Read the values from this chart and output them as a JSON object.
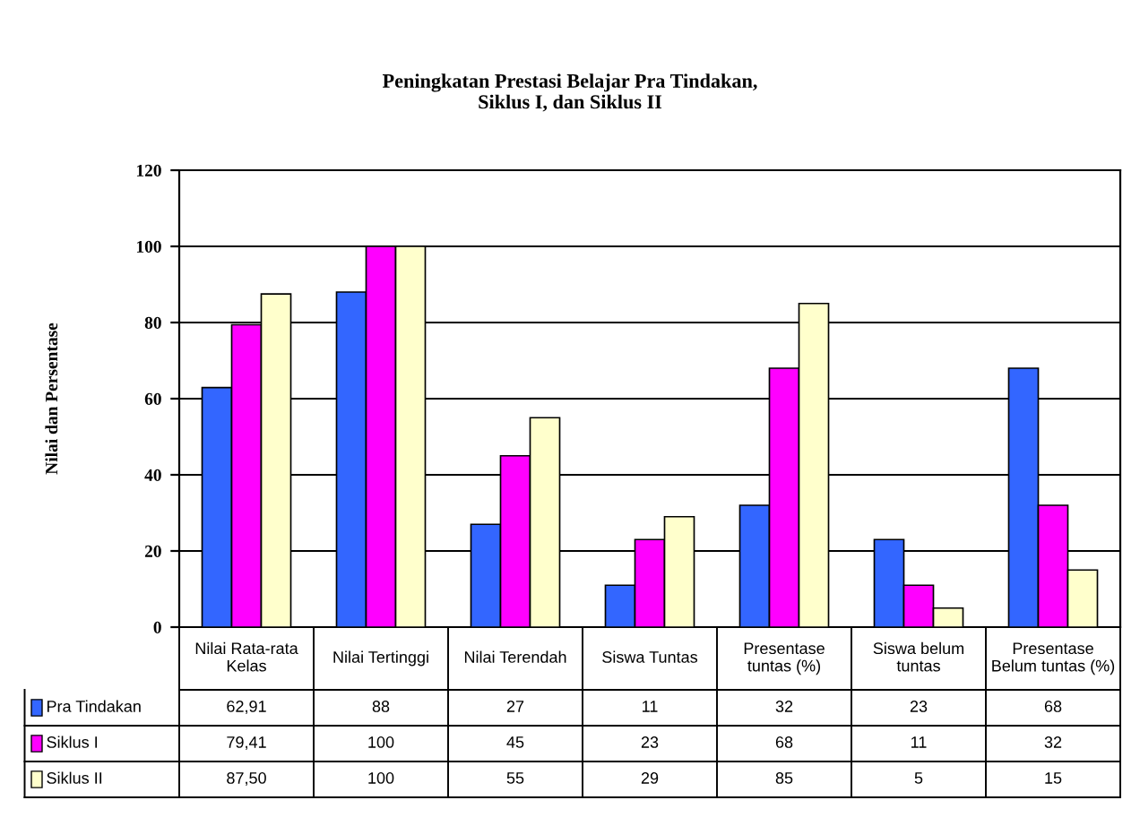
{
  "chart_data": {
    "type": "bar",
    "title": "Peningkatan Prestasi Belajar Pra Tindakan,\nSiklus I, dan Siklus II",
    "ylabel": "Nilai dan Persentase",
    "categories": [
      "Nilai Rata-rata\nKelas",
      "Nilai Tertinggi",
      "Nilai Terendah",
      "Siswa Tuntas",
      "Presentase\ntuntas (%)",
      "Siswa belum\ntuntas",
      "Presentase\nBelum tuntas (%)"
    ],
    "series": [
      {
        "name": "Pra Tindakan",
        "color": "#3366ff",
        "values": [
          62.91,
          88,
          27,
          11,
          32,
          23,
          68
        ],
        "value_labels": [
          "62,91",
          "88",
          "27",
          "11",
          "32",
          "23",
          "68"
        ]
      },
      {
        "name": "Siklus I",
        "color": "#ff00ff",
        "values": [
          79.41,
          100,
          45,
          23,
          68,
          11,
          32
        ],
        "value_labels": [
          "79,41",
          "100",
          "45",
          "23",
          "68",
          "11",
          "32"
        ]
      },
      {
        "name": "Siklus II",
        "color": "#ffffcc",
        "values": [
          87.5,
          100,
          55,
          29,
          85,
          5,
          15
        ],
        "value_labels": [
          "87,50",
          "100",
          "55",
          "29",
          "85",
          "5",
          "15"
        ]
      }
    ],
    "ylim": [
      0,
      120
    ],
    "yticks": [
      0,
      20,
      40,
      60,
      80,
      100,
      120
    ],
    "grid": "y",
    "legend": "bottom"
  }
}
